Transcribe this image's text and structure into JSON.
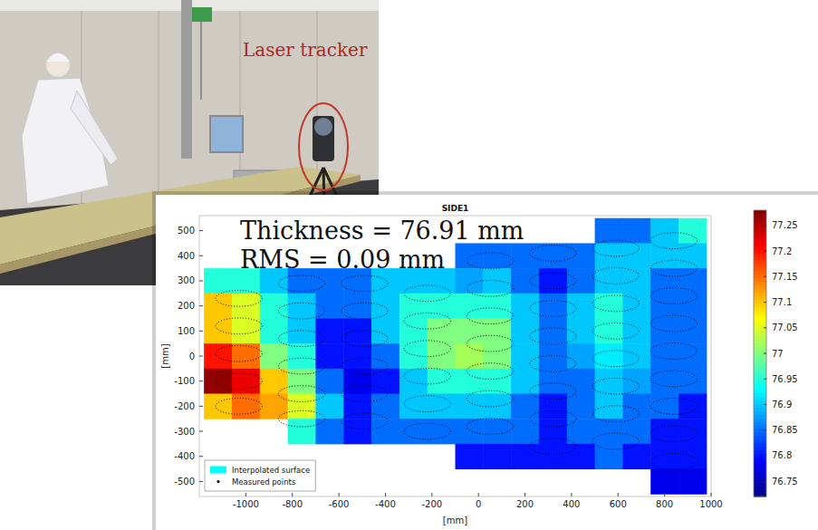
{
  "photo": {
    "label": "Laser tracker"
  },
  "chart_data": {
    "type": "heatmap",
    "title": "SIDE1",
    "annotations": [
      "Thickness = 76.91 mm",
      "RMS = 0.09 mm"
    ],
    "x_label": "[mm]",
    "y_label": "[mm]",
    "x": [
      -1120,
      -1000,
      -880,
      -760,
      -640,
      -520,
      -400,
      -280,
      -160,
      -40,
      80,
      200,
      320,
      440,
      560,
      680,
      800,
      920
    ],
    "y": [
      500,
      400,
      300,
      200,
      100,
      0,
      -100,
      -200,
      -300,
      -400,
      -500
    ],
    "z": [
      [
        null,
        null,
        null,
        null,
        null,
        null,
        null,
        null,
        null,
        null,
        null,
        null,
        null,
        null,
        76.85,
        76.85,
        76.9,
        76.95
      ],
      [
        null,
        null,
        null,
        null,
        null,
        null,
        null,
        null,
        null,
        76.85,
        76.85,
        76.85,
        76.85,
        76.85,
        76.9,
        76.9,
        76.9,
        76.9
      ],
      [
        76.95,
        76.95,
        76.9,
        76.85,
        76.85,
        76.85,
        76.9,
        76.9,
        76.9,
        76.88,
        76.9,
        76.85,
        76.8,
        76.85,
        76.9,
        76.9,
        76.85,
        76.85
      ],
      [
        77.1,
        77.05,
        76.95,
        76.9,
        76.85,
        76.85,
        76.9,
        76.95,
        76.95,
        76.95,
        76.95,
        76.9,
        76.85,
        76.9,
        76.95,
        76.9,
        76.85,
        76.85
      ],
      [
        77.1,
        77.05,
        76.95,
        76.9,
        76.8,
        76.8,
        76.9,
        76.95,
        77.0,
        77.0,
        77.0,
        76.9,
        76.85,
        76.9,
        76.95,
        76.9,
        76.85,
        76.85
      ],
      [
        77.2,
        77.15,
        77.0,
        76.95,
        76.8,
        76.8,
        76.85,
        76.95,
        77.0,
        77.02,
        77.0,
        76.9,
        76.85,
        76.88,
        76.92,
        76.9,
        76.85,
        76.85
      ],
      [
        77.27,
        77.22,
        77.1,
        77.0,
        76.85,
        76.78,
        76.8,
        76.9,
        76.95,
        76.95,
        76.95,
        76.9,
        76.85,
        76.85,
        76.9,
        76.88,
        76.85,
        76.85
      ],
      [
        77.1,
        77.15,
        77.12,
        77.05,
        76.9,
        76.8,
        76.85,
        76.9,
        76.9,
        76.9,
        76.9,
        76.85,
        76.8,
        76.85,
        76.9,
        76.85,
        76.85,
        76.8
      ],
      [
        null,
        null,
        null,
        76.95,
        76.85,
        76.8,
        76.85,
        76.85,
        76.85,
        76.85,
        76.85,
        76.85,
        76.8,
        76.85,
        76.85,
        76.85,
        76.8,
        76.8
      ],
      [
        null,
        null,
        null,
        null,
        null,
        null,
        null,
        null,
        null,
        76.8,
        76.8,
        76.8,
        76.8,
        76.8,
        76.85,
        76.8,
        76.8,
        76.8
      ],
      [
        null,
        null,
        null,
        null,
        null,
        null,
        null,
        null,
        null,
        null,
        null,
        null,
        null,
        null,
        null,
        null,
        76.78,
        76.78
      ]
    ],
    "xlim": [
      -1200,
      1000
    ],
    "xticks": [
      -1000,
      -800,
      -600,
      -400,
      -200,
      0,
      200,
      400,
      600,
      800,
      1000
    ],
    "ylim": [
      -560,
      560
    ],
    "yticks": [
      -500,
      -400,
      -300,
      -200,
      -100,
      0,
      100,
      200,
      300,
      400,
      500
    ],
    "colorbar": {
      "range": [
        76.72,
        77.28
      ],
      "ticks": [
        76.75,
        76.8,
        76.85,
        76.9,
        76.95,
        77,
        77.05,
        77.1,
        77.15,
        77.2,
        77.25
      ]
    },
    "series": [
      {
        "name": "Interpolated surface",
        "color": "#00ffff"
      },
      {
        "name": "Measured points",
        "color": "#000000",
        "marker": "dot",
        "x": [
          -1030,
          -1030,
          -1030,
          -1030,
          -1030,
          -760,
          -760,
          -760,
          -760,
          -760,
          -760,
          -490,
          -490,
          -490,
          -490,
          -490,
          -490,
          -220,
          -220,
          -220,
          -220,
          -220,
          -220,
          50,
          50,
          50,
          50,
          50,
          50,
          50,
          320,
          320,
          320,
          320,
          320,
          320,
          320,
          320,
          590,
          590,
          590,
          590,
          590,
          590,
          590,
          590,
          840,
          840,
          840,
          840,
          840,
          840,
          840,
          840,
          840
        ],
        "y": [
          230,
          120,
          10,
          -100,
          -200,
          290,
          180,
          70,
          -40,
          -150,
          -250,
          290,
          180,
          70,
          -40,
          -150,
          -260,
          250,
          140,
          30,
          -80,
          -190,
          -300,
          380,
          270,
          160,
          50,
          -60,
          -170,
          -280,
          410,
          300,
          190,
          80,
          -30,
          -140,
          -250,
          -360,
          430,
          320,
          210,
          100,
          -10,
          -120,
          -230,
          -340,
          460,
          350,
          240,
          130,
          20,
          -90,
          -200,
          -310,
          -420
        ]
      }
    ],
    "legend": "lower left"
  }
}
